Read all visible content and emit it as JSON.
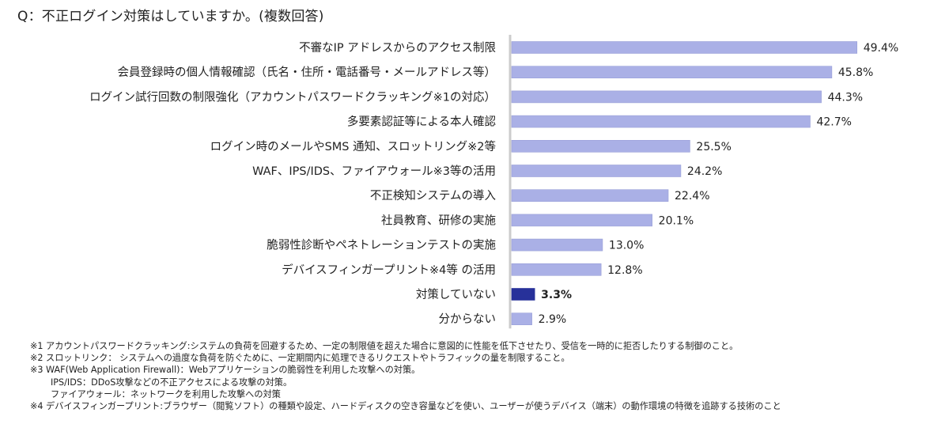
{
  "title": "Q：不正ログイン対策はしていますか。(複数回答)",
  "chart_data": {
    "type": "bar",
    "orientation": "horizontal",
    "title": "Q：不正ログイン対策はしていますか。(複数回答)",
    "xlabel": "",
    "ylabel": "",
    "unit": "%",
    "xlim": [
      0,
      50
    ],
    "grid": false,
    "categories": [
      "不審なIP アドレスからのアクセス制限",
      "会員登録時の個人情報確認（氏名・住所・電話番号・メールアドレス等）",
      "ログイン試行回数の制限強化（アカウントパスワードクラッキング※1の対応）",
      "多要素認証等による本人確認",
      "ログイン時のメールやSMS 通知、スロットリング※2等",
      "WAF、IPS/IDS、ファイアウォール※3等の活用",
      "不正検知システムの導入",
      "社員教育、研修の実施",
      "脆弱性診断やペネトレーションテストの実施",
      "デバイスフィンガープリント※4等 の活用",
      "対策していない",
      "分からない"
    ],
    "values": [
      49.4,
      45.8,
      44.3,
      42.7,
      25.5,
      24.2,
      22.4,
      20.1,
      13.0,
      12.8,
      3.3,
      2.9
    ],
    "value_labels": [
      "49.4%",
      "45.8%",
      "44.3%",
      "42.7%",
      "25.5%",
      "24.2%",
      "22.4%",
      "20.1%",
      "13.0%",
      "12.8%",
      "3.3%",
      "2.9%"
    ],
    "highlight_index": 10,
    "colors": {
      "bar": "#aab0e6",
      "bar_border": "#9aa0d8",
      "highlight": "#27319a",
      "axis": "#cccccc"
    }
  },
  "footnotes": [
    "※1 アカウントパスワードクラッキング:システムの負荷を回避するため、一定の制限値を超えた場合に意図的に性能を低下させたり、受信を一時的に拒否したりする制御のこと。",
    "※2 スロットリンク： システムへの過度な負荷を防ぐために、一定期間内に処理できるリクエストやトラフィックの量を制限すること。",
    "※3 WAF(Web Application Firewall)：Webアプリケーションの脆弱性を利用した攻撃への対策。",
    "IPS/IDS：DDoS攻撃などの不正アクセスによる攻撃の対策。",
    "ファイアウォール：ネットワークを利用した攻撃への対策",
    "※4 デバイスフィンガープリント:ブラウザー（閲覧ソフト）の種類や設定、ハードディスクの空き容量などを使い、ユーザーが使うデバイス（端末）の動作環境の特徴を追跡する技術のこと"
  ]
}
